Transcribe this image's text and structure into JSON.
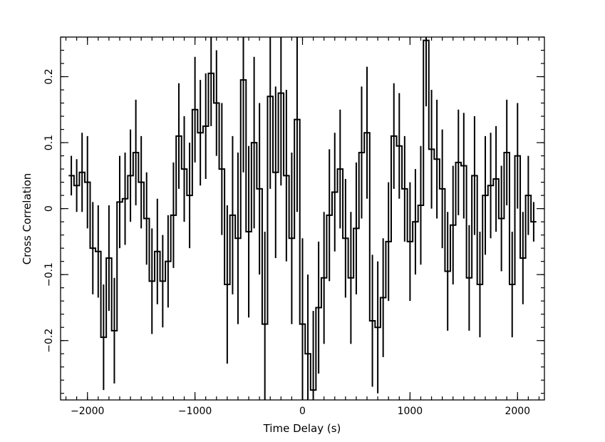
{
  "chart_data": {
    "type": "line",
    "title": "",
    "xlabel": "Time Delay (s)",
    "ylabel": "Cross Correlation",
    "xlim": [
      -2250,
      2250
    ],
    "ylim": [
      -0.29,
      0.26
    ],
    "grid": false,
    "legend": "none",
    "step": "histogram",
    "bin_width": 50,
    "colors": {
      "line": "#000000",
      "background": "#ffffff"
    },
    "x_ticks": [
      {
        "value": -2000,
        "label": "−2000"
      },
      {
        "value": -1000,
        "label": "−1000"
      },
      {
        "value": 0,
        "label": "0"
      },
      {
        "value": 1000,
        "label": "1000"
      },
      {
        "value": 2000,
        "label": "2000"
      }
    ],
    "y_ticks": [
      {
        "value": -0.2,
        "label": "−0.2"
      },
      {
        "value": -0.1,
        "label": "−0.1"
      },
      {
        "value": 0,
        "label": "0"
      },
      {
        "value": 0.1,
        "label": "0.1"
      },
      {
        "value": 0.2,
        "label": "0.2"
      }
    ],
    "x_minor_step": 100,
    "y_minor_step": 0.02,
    "series": [
      {
        "x": [
          -2150,
          -2100,
          -2050,
          -2000,
          -1950,
          -1900,
          -1850,
          -1800,
          -1750,
          -1700,
          -1650,
          -1600,
          -1550,
          -1500,
          -1450,
          -1400,
          -1350,
          -1300,
          -1250,
          -1200,
          -1150,
          -1100,
          -1050,
          -1000,
          -950,
          -900,
          -850,
          -800,
          -750,
          -700,
          -650,
          -600,
          -550,
          -500,
          -450,
          -400,
          -350,
          -300,
          -250,
          -200,
          -150,
          -100,
          -50,
          0,
          50,
          100,
          150,
          200,
          250,
          300,
          350,
          400,
          450,
          500,
          550,
          600,
          650,
          700,
          750,
          800,
          850,
          900,
          950,
          1000,
          1050,
          1100,
          1150,
          1200,
          1250,
          1300,
          1350,
          1400,
          1450,
          1500,
          1550,
          1600,
          1650,
          1700,
          1750,
          1800,
          1850,
          1900,
          1950,
          2000,
          2050,
          2100,
          2150
        ],
        "y": [
          0.05,
          0.035,
          0.055,
          0.04,
          -0.06,
          -0.065,
          -0.195,
          -0.075,
          -0.185,
          0.01,
          0.015,
          0.05,
          0.085,
          0.04,
          -0.015,
          -0.11,
          -0.065,
          -0.11,
          -0.08,
          -0.01,
          0.11,
          0.06,
          0.02,
          0.15,
          0.115,
          0.125,
          0.205,
          0.16,
          0.06,
          -0.115,
          -0.01,
          -0.045,
          0.195,
          -0.035,
          0.1,
          0.03,
          -0.175,
          0.17,
          0.055,
          0.175,
          0.05,
          -0.045,
          0.135,
          -0.175,
          -0.22,
          -0.275,
          -0.15,
          -0.105,
          -0.01,
          0.025,
          0.06,
          -0.045,
          -0.105,
          -0.03,
          0.085,
          0.115,
          -0.17,
          -0.18,
          -0.135,
          -0.05,
          0.11,
          0.095,
          0.03,
          -0.05,
          -0.02,
          0.005,
          0.255,
          0.09,
          0.075,
          0.03,
          -0.095,
          -0.025,
          0.07,
          0.065,
          -0.105,
          0.05,
          -0.115,
          0.02,
          0.035,
          0.045,
          -0.015,
          0.085,
          -0.115,
          0.08,
          -0.075,
          0.02,
          -0.02
        ],
        "err": [
          0.03,
          0.04,
          0.06,
          0.07,
          0.07,
          0.07,
          0.08,
          0.08,
          0.08,
          0.07,
          0.07,
          0.07,
          0.08,
          0.07,
          0.07,
          0.08,
          0.08,
          0.07,
          0.07,
          0.08,
          0.08,
          0.08,
          0.08,
          0.08,
          0.08,
          0.08,
          0.08,
          0.08,
          0.1,
          0.12,
          0.12,
          0.13,
          0.14,
          0.13,
          0.13,
          0.13,
          0.14,
          0.14,
          0.13,
          0.14,
          0.13,
          0.13,
          0.14,
          0.13,
          0.12,
          0.12,
          0.1,
          0.1,
          0.1,
          0.09,
          0.09,
          0.09,
          0.1,
          0.1,
          0.1,
          0.1,
          0.1,
          0.1,
          0.09,
          0.09,
          0.08,
          0.08,
          0.08,
          0.09,
          0.08,
          0.09,
          0.1,
          0.09,
          0.09,
          0.09,
          0.09,
          0.09,
          0.08,
          0.08,
          0.08,
          0.09,
          0.08,
          0.09,
          0.08,
          0.08,
          0.08,
          0.08,
          0.08,
          0.08,
          0.07,
          0.06,
          0.03
        ]
      }
    ]
  }
}
